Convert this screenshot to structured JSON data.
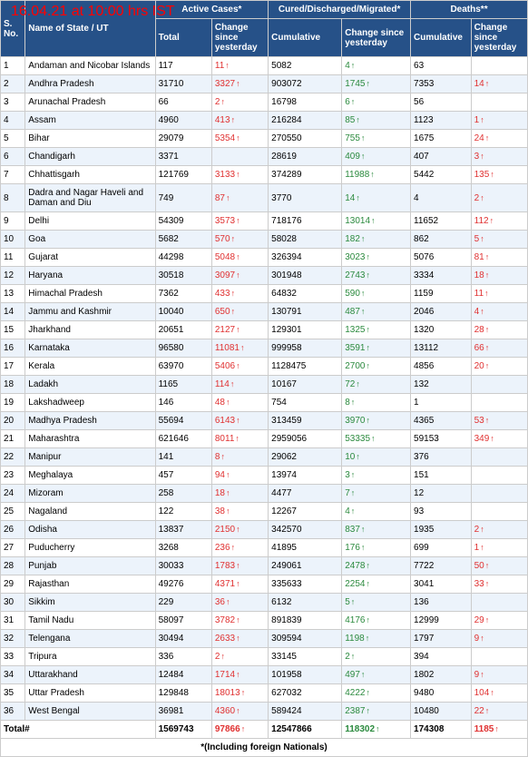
{
  "timestamp": "16.04.21 at 10:00 hrs IST",
  "header_groups": {
    "active": "Active Cases*",
    "cured": "Cured/Discharged/Migrated*",
    "deaths": "Deaths**"
  },
  "columns": {
    "sno": "S. No.",
    "state": "Name of State / UT",
    "total": "Total",
    "change": "Change since yesterday",
    "cumulative": "Cumulative"
  },
  "rows": [
    {
      "n": "1",
      "state": "Andaman and Nicobar Islands",
      "at": "117",
      "ac": "11",
      "acls": "red",
      "cc": "5082",
      "cd": "4",
      "cdls": "green",
      "dc": "63",
      "dd": ""
    },
    {
      "n": "2",
      "state": "Andhra Pradesh",
      "at": "31710",
      "ac": "3327",
      "acls": "red",
      "cc": "903072",
      "cd": "1745",
      "cdls": "green",
      "dc": "7353",
      "dd": "14",
      "ddls": "red"
    },
    {
      "n": "3",
      "state": "Arunachal Pradesh",
      "at": "66",
      "ac": "2",
      "acls": "red",
      "cc": "16798",
      "cd": "6",
      "cdls": "green",
      "dc": "56",
      "dd": ""
    },
    {
      "n": "4",
      "state": "Assam",
      "at": "4960",
      "ac": "413",
      "acls": "red",
      "cc": "216284",
      "cd": "85",
      "cdls": "green",
      "dc": "1123",
      "dd": "1",
      "ddls": "red"
    },
    {
      "n": "5",
      "state": "Bihar",
      "at": "29079",
      "ac": "5354",
      "acls": "red",
      "cc": "270550",
      "cd": "755",
      "cdls": "green",
      "dc": "1675",
      "dd": "24",
      "ddls": "red"
    },
    {
      "n": "6",
      "state": "Chandigarh",
      "at": "3371",
      "ac": "",
      "cc": "28619",
      "cd": "409",
      "cdls": "green",
      "dc": "407",
      "dd": "3",
      "ddls": "red"
    },
    {
      "n": "7",
      "state": "Chhattisgarh",
      "at": "121769",
      "ac": "3133",
      "acls": "red",
      "cc": "374289",
      "cd": "11988",
      "cdls": "green",
      "dc": "5442",
      "dd": "135",
      "ddls": "red"
    },
    {
      "n": "8",
      "state": "Dadra and Nagar Haveli and Daman and Diu",
      "at": "749",
      "ac": "87",
      "acls": "red",
      "cc": "3770",
      "cd": "14",
      "cdls": "green",
      "dc": "4",
      "dd": "2",
      "ddls": "red"
    },
    {
      "n": "9",
      "state": "Delhi",
      "at": "54309",
      "ac": "3573",
      "acls": "red",
      "cc": "718176",
      "cd": "13014",
      "cdls": "green",
      "dc": "11652",
      "dd": "112",
      "ddls": "red"
    },
    {
      "n": "10",
      "state": "Goa",
      "at": "5682",
      "ac": "570",
      "acls": "red",
      "cc": "58028",
      "cd": "182",
      "cdls": "green",
      "dc": "862",
      "dd": "5",
      "ddls": "red"
    },
    {
      "n": "11",
      "state": "Gujarat",
      "at": "44298",
      "ac": "5048",
      "acls": "red",
      "cc": "326394",
      "cd": "3023",
      "cdls": "green",
      "dc": "5076",
      "dd": "81",
      "ddls": "red"
    },
    {
      "n": "12",
      "state": "Haryana",
      "at": "30518",
      "ac": "3097",
      "acls": "red",
      "cc": "301948",
      "cd": "2743",
      "cdls": "green",
      "dc": "3334",
      "dd": "18",
      "ddls": "red"
    },
    {
      "n": "13",
      "state": "Himachal Pradesh",
      "at": "7362",
      "ac": "433",
      "acls": "red",
      "cc": "64832",
      "cd": "590",
      "cdls": "green",
      "dc": "1159",
      "dd": "11",
      "ddls": "red"
    },
    {
      "n": "14",
      "state": "Jammu and Kashmir",
      "at": "10040",
      "ac": "650",
      "acls": "red",
      "cc": "130791",
      "cd": "487",
      "cdls": "green",
      "dc": "2046",
      "dd": "4",
      "ddls": "red"
    },
    {
      "n": "15",
      "state": "Jharkhand",
      "at": "20651",
      "ac": "2127",
      "acls": "red",
      "cc": "129301",
      "cd": "1325",
      "cdls": "green",
      "dc": "1320",
      "dd": "28",
      "ddls": "red"
    },
    {
      "n": "16",
      "state": "Karnataka",
      "at": "96580",
      "ac": "11081",
      "acls": "red",
      "cc": "999958",
      "cd": "3591",
      "cdls": "green",
      "dc": "13112",
      "dd": "66",
      "ddls": "red"
    },
    {
      "n": "17",
      "state": "Kerala",
      "at": "63970",
      "ac": "5406",
      "acls": "red",
      "cc": "1128475",
      "cd": "2700",
      "cdls": "green",
      "dc": "4856",
      "dd": "20",
      "ddls": "red"
    },
    {
      "n": "18",
      "state": "Ladakh",
      "at": "1165",
      "ac": "114",
      "acls": "red",
      "cc": "10167",
      "cd": "72",
      "cdls": "green",
      "dc": "132",
      "dd": ""
    },
    {
      "n": "19",
      "state": "Lakshadweep",
      "at": "146",
      "ac": "48",
      "acls": "red",
      "cc": "754",
      "cd": "8",
      "cdls": "green",
      "dc": "1",
      "dd": ""
    },
    {
      "n": "20",
      "state": "Madhya Pradesh",
      "at": "55694",
      "ac": "6143",
      "acls": "red",
      "cc": "313459",
      "cd": "3970",
      "cdls": "green",
      "dc": "4365",
      "dd": "53",
      "ddls": "red"
    },
    {
      "n": "21",
      "state": "Maharashtra",
      "at": "621646",
      "ac": "8011",
      "acls": "red",
      "cc": "2959056",
      "cd": "53335",
      "cdls": "green",
      "dc": "59153",
      "dd": "349",
      "ddls": "red"
    },
    {
      "n": "22",
      "state": "Manipur",
      "at": "141",
      "ac": "8",
      "acls": "red",
      "cc": "29062",
      "cd": "10",
      "cdls": "green",
      "dc": "376",
      "dd": ""
    },
    {
      "n": "23",
      "state": "Meghalaya",
      "at": "457",
      "ac": "94",
      "acls": "red",
      "cc": "13974",
      "cd": "3",
      "cdls": "green",
      "dc": "151",
      "dd": ""
    },
    {
      "n": "24",
      "state": "Mizoram",
      "at": "258",
      "ac": "18",
      "acls": "red",
      "cc": "4477",
      "cd": "7",
      "cdls": "green",
      "dc": "12",
      "dd": ""
    },
    {
      "n": "25",
      "state": "Nagaland",
      "at": "122",
      "ac": "38",
      "acls": "red",
      "cc": "12267",
      "cd": "4",
      "cdls": "green",
      "dc": "93",
      "dd": ""
    },
    {
      "n": "26",
      "state": "Odisha",
      "at": "13837",
      "ac": "2150",
      "acls": "red",
      "cc": "342570",
      "cd": "837",
      "cdls": "green",
      "dc": "1935",
      "dd": "2",
      "ddls": "red"
    },
    {
      "n": "27",
      "state": "Puducherry",
      "at": "3268",
      "ac": "236",
      "acls": "red",
      "cc": "41895",
      "cd": "176",
      "cdls": "green",
      "dc": "699",
      "dd": "1",
      "ddls": "red"
    },
    {
      "n": "28",
      "state": "Punjab",
      "at": "30033",
      "ac": "1783",
      "acls": "red",
      "cc": "249061",
      "cd": "2478",
      "cdls": "green",
      "dc": "7722",
      "dd": "50",
      "ddls": "red"
    },
    {
      "n": "29",
      "state": "Rajasthan",
      "at": "49276",
      "ac": "4371",
      "acls": "red",
      "cc": "335633",
      "cd": "2254",
      "cdls": "green",
      "dc": "3041",
      "dd": "33",
      "ddls": "red"
    },
    {
      "n": "30",
      "state": "Sikkim",
      "at": "229",
      "ac": "36",
      "acls": "red",
      "cc": "6132",
      "cd": "5",
      "cdls": "green",
      "dc": "136",
      "dd": ""
    },
    {
      "n": "31",
      "state": "Tamil Nadu",
      "at": "58097",
      "ac": "3782",
      "acls": "red",
      "cc": "891839",
      "cd": "4176",
      "cdls": "green",
      "dc": "12999",
      "dd": "29",
      "ddls": "red"
    },
    {
      "n": "32",
      "state": "Telengana",
      "at": "30494",
      "ac": "2633",
      "acls": "red",
      "cc": "309594",
      "cd": "1198",
      "cdls": "green",
      "dc": "1797",
      "dd": "9",
      "ddls": "red"
    },
    {
      "n": "33",
      "state": "Tripura",
      "at": "336",
      "ac": "2",
      "acls": "red",
      "cc": "33145",
      "cd": "2",
      "cdls": "green",
      "dc": "394",
      "dd": ""
    },
    {
      "n": "34",
      "state": "Uttarakhand",
      "at": "12484",
      "ac": "1714",
      "acls": "red",
      "cc": "101958",
      "cd": "497",
      "cdls": "green",
      "dc": "1802",
      "dd": "9",
      "ddls": "red"
    },
    {
      "n": "35",
      "state": "Uttar Pradesh",
      "at": "129848",
      "ac": "18013",
      "acls": "red",
      "cc": "627032",
      "cd": "4222",
      "cdls": "green",
      "dc": "9480",
      "dd": "104",
      "ddls": "red"
    },
    {
      "n": "36",
      "state": "West Bengal",
      "at": "36981",
      "ac": "4360",
      "acls": "red",
      "cc": "589424",
      "cd": "2387",
      "cdls": "green",
      "dc": "10480",
      "dd": "22",
      "ddls": "red"
    }
  ],
  "total": {
    "label": "Total#",
    "at": "1569743",
    "ac": "97866",
    "acls": "red",
    "cc": "12547866",
    "cd": "118302",
    "cdls": "green",
    "dc": "174308",
    "dd": "1185",
    "ddls": "red"
  },
  "footnote": "*(Including foreign Nationals)"
}
